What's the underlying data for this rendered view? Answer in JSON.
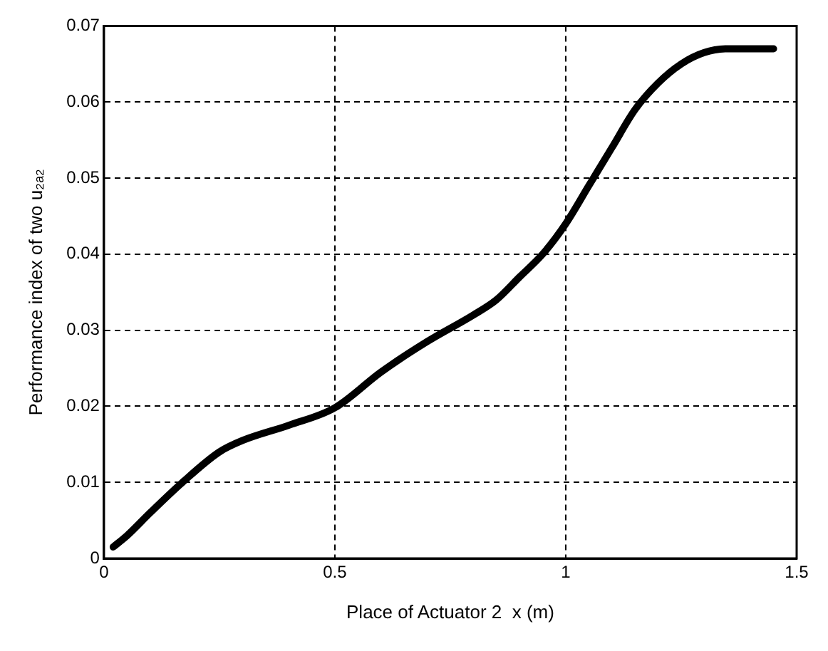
{
  "chart_data": {
    "type": "line",
    "xlabel": "Place of Actuator 2  x (m)",
    "ylabel": "Performance index of two u₂ₐ₂",
    "x": [
      0.02,
      0.05,
      0.1,
      0.17,
      0.25,
      0.3,
      0.4,
      0.5,
      0.6,
      0.7,
      0.8,
      0.85,
      0.9,
      0.95,
      1.0,
      1.05,
      1.1,
      1.15,
      1.2,
      1.25,
      1.3,
      1.35,
      1.4,
      1.45
    ],
    "series": [
      {
        "color": "#000000",
        "values": [
          0.0015,
          0.003,
          0.006,
          0.01,
          0.014,
          0.0155,
          0.0175,
          0.0198,
          0.0245,
          0.0285,
          0.032,
          0.034,
          0.037,
          0.04,
          0.044,
          0.049,
          0.054,
          0.059,
          0.0625,
          0.065,
          0.0665,
          0.067,
          0.067,
          0.067
        ]
      }
    ],
    "xlim": [
      0,
      1.5
    ],
    "xticks": [
      0,
      0.5,
      1,
      1.5
    ],
    "ylim": [
      0,
      0.07
    ],
    "yticks": [
      0,
      0.01,
      0.02,
      0.03,
      0.04,
      0.05,
      0.06,
      0.07
    ],
    "grid": true,
    "line_style": "solid",
    "marker": "none",
    "legend": false
  }
}
